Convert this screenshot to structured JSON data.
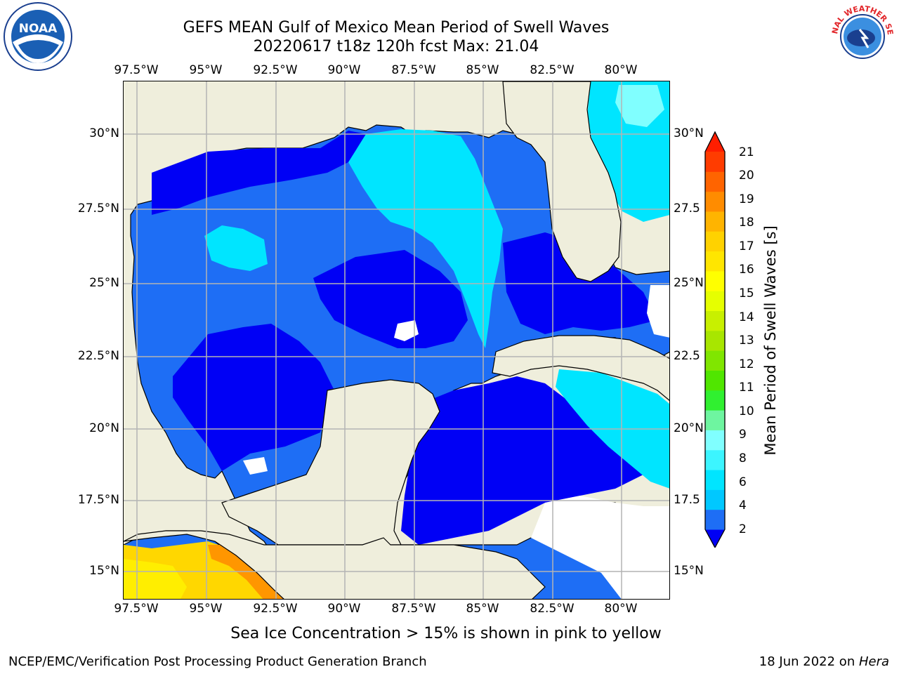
{
  "header": {
    "title_line1": "GEFS MEAN Gulf of Mexico Mean Period of Swell Waves",
    "title_line2": "20220617 t18z 120h fcst   Max: 21.04"
  },
  "logos": {
    "left": {
      "icon": "noaa-logo-icon",
      "text": "NOAA"
    },
    "right": {
      "icon": "nws-logo-icon",
      "text": "NATIONAL WEATHER SERVICE"
    }
  },
  "map": {
    "region": "Gulf of Mexico",
    "lon_labels_top": [
      "97.5°W",
      "95°W",
      "92.5°W",
      "90°W",
      "87.5°W",
      "85°W",
      "82.5°W",
      "80°W"
    ],
    "lon_labels_bottom": [
      "97.5°W",
      "95°W",
      "92.5°W",
      "90°W",
      "87.5°W",
      "85°W",
      "82.5°W",
      "80°W"
    ],
    "lat_labels_left": [
      "30°N",
      "27.5°N",
      "25°N",
      "22.5°N",
      "20°N",
      "17.5°N",
      "15°N"
    ],
    "lat_labels_right": [
      "30°N",
      "27.5",
      "25°N",
      "22.5",
      "20°N",
      "17.5",
      "15°N"
    ],
    "lon_range": [
      -98.0,
      -78.3
    ],
    "lat_range": [
      14.0,
      31.8
    ],
    "colors": {
      "land": "#efeedc",
      "ocean_2_4": "#0000f5",
      "ocean_4_6": "#1e6ef5",
      "ocean_6_8": "#00e5ff",
      "ocean_8_9": "#80ffff",
      "pacific_warm": "#ffd700",
      "pacific_hot": "#ff7f00",
      "grid": "#b4b4b4"
    }
  },
  "colorbar": {
    "label": "Mean Period of Swell Waves [s]",
    "ticks": [
      "21",
      "20",
      "19",
      "18",
      "17",
      "16",
      "15",
      "14",
      "13",
      "12",
      "11",
      "10",
      "9",
      "8",
      "6",
      "4",
      "2"
    ],
    "colors": [
      "#0000f5",
      "#1e6ef5",
      "#00c8ff",
      "#00e5ff",
      "#3cf5ff",
      "#80ffff",
      "#6ef5a0",
      "#30f030",
      "#50e600",
      "#80e600",
      "#a8e600",
      "#c8f000",
      "#e6ff00",
      "#ffff00",
      "#ffe600",
      "#ffd200",
      "#ffb400",
      "#ff8c00",
      "#ff6400",
      "#ff3c00",
      "#ff1e00"
    ]
  },
  "footer": {
    "note": "Sea Ice Concentration > 15% is shown in pink to yellow",
    "left": "NCEP/EMC/Verification Post Processing Product Generation Branch",
    "right_prefix": "18 Jun 2022 on ",
    "right_host": "Hera"
  }
}
